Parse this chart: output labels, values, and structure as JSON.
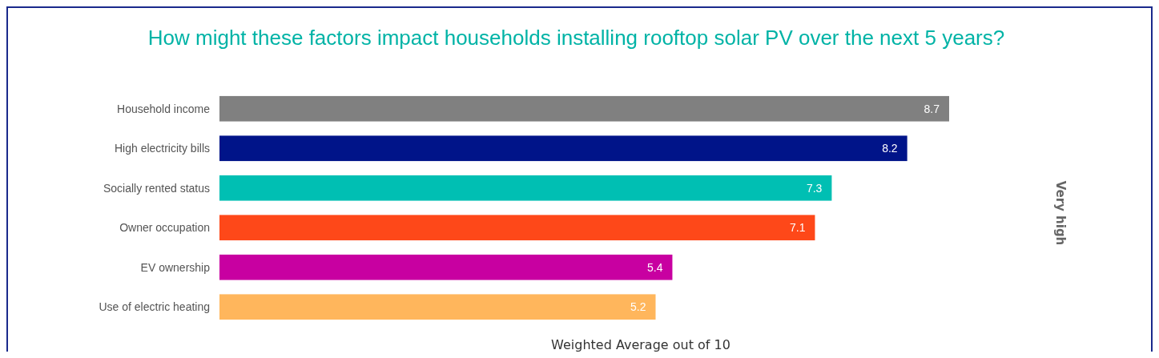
{
  "chart_data": {
    "type": "bar",
    "orientation": "horizontal",
    "title": "How might these factors impact households installing rooftop solar PV over the next 5 years?",
    "xlabel": "Weighted Average out of 10",
    "annotations": [
      "Very high"
    ],
    "categories": [
      "Household income",
      "High electricity bills",
      "Socially rented status",
      "Owner occupation",
      "EV ownership",
      "Use of electric heating"
    ],
    "values": [
      8.7,
      8.2,
      7.3,
      7.1,
      5.4,
      5.2
    ],
    "colors": [
      "#808080",
      "#001489",
      "#00bfb3",
      "#fe4819",
      "#c800a1",
      "#ffb65c"
    ],
    "data_labels": true
  }
}
